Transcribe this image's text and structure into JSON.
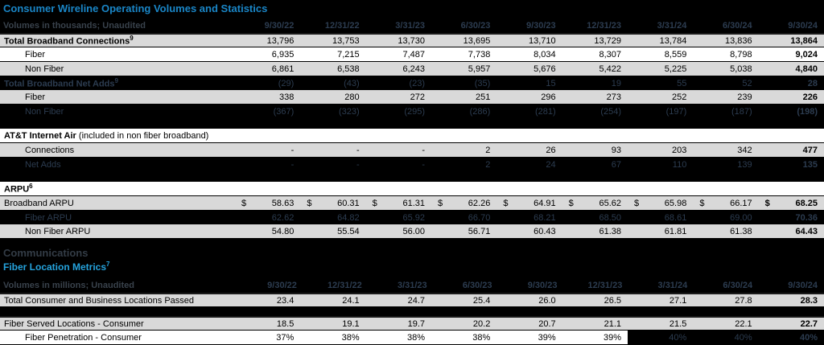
{
  "currency_symbol": "$",
  "colors": {
    "background": "#000000",
    "title_blue": "#1a86c7",
    "subtitle_cyan": "#25a3dd",
    "dark_row_text": "#2c3c50",
    "gray_row": "#d9d9d9",
    "white_row": "#ffffff"
  },
  "top_table": {
    "title": "Consumer Wireline Operating Volumes and Statistics",
    "unit_label": "Volumes in thousands; Unaudited",
    "dates": [
      "9/30/22",
      "12/31/22",
      "3/31/23",
      "6/30/23",
      "9/30/23",
      "12/31/23",
      "3/31/24",
      "6/30/24",
      "9/30/24"
    ],
    "rows": [
      {
        "label": "Total Broadband Connections",
        "sup": "9",
        "bg": "gray",
        "bold": true,
        "first": true,
        "values": [
          "13,796",
          "13,753",
          "13,730",
          "13,695",
          "13,710",
          "13,729",
          "13,784",
          "13,836",
          "13,864"
        ]
      },
      {
        "label": "Fiber",
        "bg": "white",
        "indent": 1,
        "values": [
          "6,935",
          "7,215",
          "7,487",
          "7,738",
          "8,034",
          "8,307",
          "8,559",
          "8,798",
          "9,024"
        ]
      },
      {
        "label": "Non Fiber",
        "bg": "gray",
        "indent": 1,
        "values": [
          "6,861",
          "6,538",
          "6,243",
          "5,957",
          "5,676",
          "5,422",
          "5,225",
          "5,038",
          "4,840"
        ]
      },
      {
        "label": "Total Broadband Net Adds",
        "sup": "9",
        "bg": "black",
        "bold": true,
        "values": [
          "(29)",
          "(43)",
          "(23)",
          "(35)",
          "15",
          "19",
          "55",
          "52",
          "28"
        ]
      },
      {
        "label": "Fiber",
        "bg": "gray",
        "indent": 1,
        "values": [
          "338",
          "280",
          "272",
          "251",
          "296",
          "273",
          "252",
          "239",
          "226"
        ]
      },
      {
        "label": "Non Fiber",
        "bg": "black",
        "indent": 1,
        "values": [
          "(367)",
          "(323)",
          "(295)",
          "(286)",
          "(281)",
          "(254)",
          "(197)",
          "(187)",
          "(198)"
        ]
      },
      {
        "type": "gap"
      },
      {
        "label": "AT&T Internet Air",
        "label_suffix": " (included in non fiber broadband)",
        "bg": "white",
        "bold": true,
        "values": []
      },
      {
        "label": "Connections",
        "bg": "gray",
        "indent": 1,
        "values": [
          "-",
          "-",
          "-",
          "2",
          "26",
          "93",
          "203",
          "342",
          "477"
        ]
      },
      {
        "label": "Net Adds",
        "bg": "black",
        "indent": 1,
        "values": [
          "-",
          "-",
          "-",
          "2",
          "24",
          "67",
          "110",
          "139",
          "135"
        ]
      },
      {
        "type": "gap"
      },
      {
        "label": "ARPU",
        "sup": "6",
        "bg": "white",
        "bold": true,
        "values": []
      },
      {
        "label": "Broadband ARPU",
        "bg": "gray",
        "currency": true,
        "values": [
          "58.63",
          "60.31",
          "61.31",
          "62.26",
          "64.91",
          "65.62",
          "65.98",
          "66.17",
          "68.25"
        ]
      },
      {
        "label": "Fiber ARPU",
        "bg": "black",
        "indent": 1,
        "values": [
          "62.62",
          "64.82",
          "65.92",
          "66.70",
          "68.21",
          "68.50",
          "68.61",
          "69.00",
          "70.36"
        ]
      },
      {
        "label": "Non Fiber ARPU",
        "bg": "gray",
        "indent": 1,
        "values": [
          "54.80",
          "55.54",
          "56.00",
          "56.71",
          "60.43",
          "61.38",
          "61.81",
          "61.38",
          "64.43"
        ]
      }
    ]
  },
  "bottom_table": {
    "section_title": "Communications",
    "subtitle": "Fiber Location Metrics",
    "subtitle_sup": "7",
    "unit_label": "Volumes in millions; Unaudited",
    "dates": [
      "9/30/22",
      "12/31/22",
      "3/31/23",
      "6/30/23",
      "9/30/23",
      "12/31/23",
      "3/31/24",
      "6/30/24",
      "9/30/24"
    ],
    "rows": [
      {
        "label": "Total Consumer and Business Locations Passed",
        "bg": "gray",
        "first": true,
        "values": [
          "23.4",
          "24.1",
          "24.7",
          "25.4",
          "26.0",
          "26.5",
          "27.1",
          "27.8",
          "28.3"
        ]
      },
      {
        "type": "gap",
        "small": true
      },
      {
        "label": "Fiber Served Locations - Consumer",
        "bg": "gray",
        "first": true,
        "values": [
          "18.5",
          "19.1",
          "19.7",
          "20.2",
          "20.7",
          "21.1",
          "21.5",
          "22.1",
          "22.7"
        ]
      },
      {
        "label": "Fiber Penetration - Consumer",
        "bg": "white",
        "indent": 1,
        "black_cells_from": 6,
        "values": [
          "37%",
          "38%",
          "38%",
          "38%",
          "39%",
          "39%",
          "40%",
          "40%",
          "40%"
        ]
      }
    ]
  }
}
